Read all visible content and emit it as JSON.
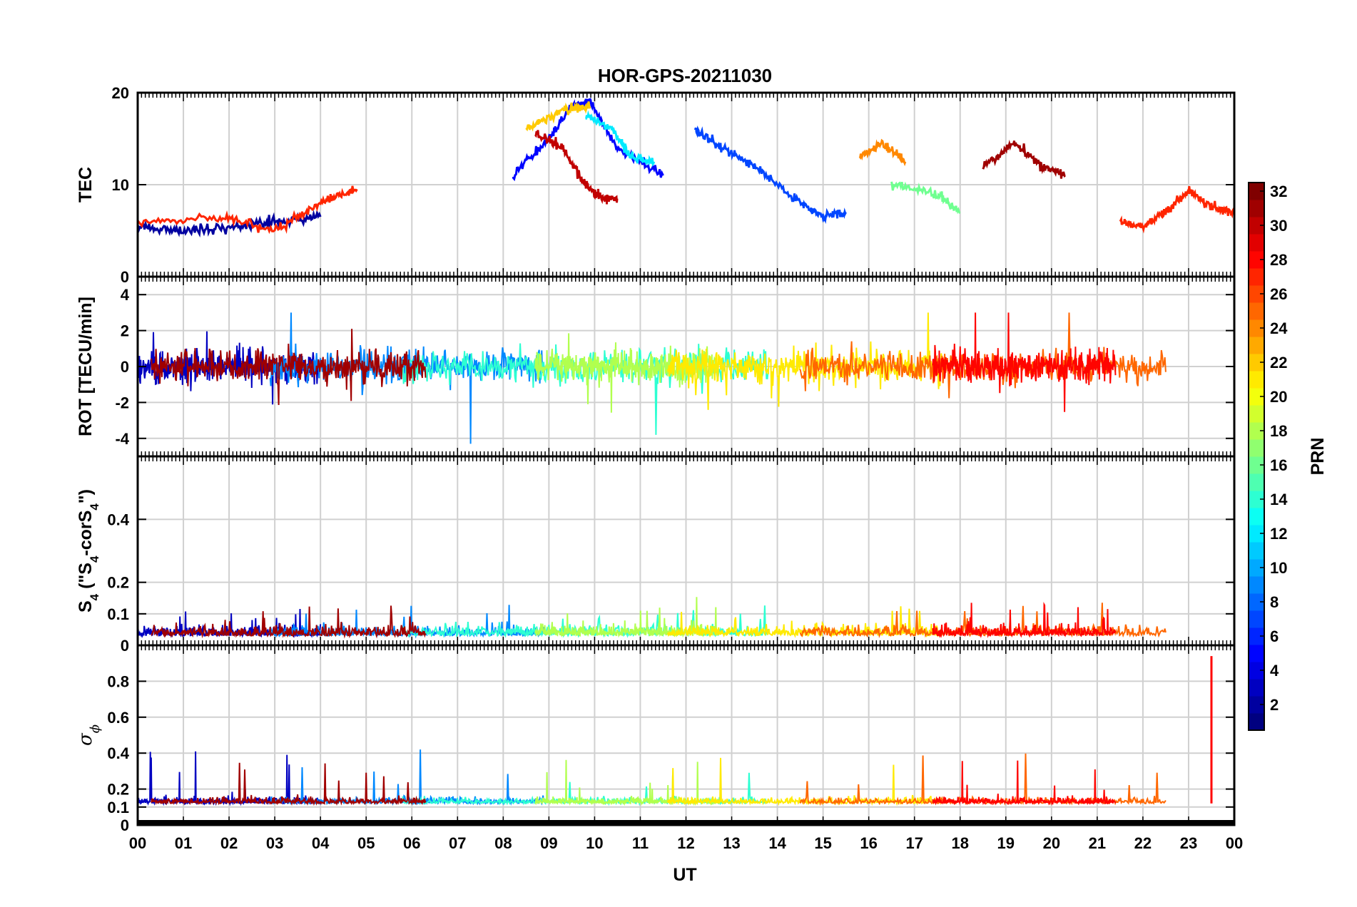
{
  "chart_data": {
    "type": "line",
    "title": "HOR-GPS-20211030",
    "xlabel": "UT",
    "x_tick_labels": [
      "00",
      "01",
      "02",
      "03",
      "04",
      "05",
      "06",
      "07",
      "08",
      "09",
      "10",
      "11",
      "12",
      "13",
      "14",
      "15",
      "16",
      "17",
      "18",
      "19",
      "20",
      "21",
      "22",
      "23",
      "00"
    ],
    "xlim": [
      0,
      24
    ],
    "colorbar": {
      "label": "PRN",
      "colormap": "jet",
      "range": [
        1,
        32
      ],
      "tick_values": [
        2,
        4,
        6,
        8,
        10,
        12,
        14,
        16,
        18,
        20,
        22,
        24,
        26,
        28,
        30,
        32
      ],
      "tick_labels": [
        "2",
        "4",
        "6",
        "8",
        "10",
        "12",
        "14",
        "16",
        "18",
        "20",
        "22",
        "24",
        "26",
        "28",
        "30",
        "32"
      ]
    },
    "panels": [
      {
        "id": "tec",
        "ylabel": "TEC",
        "ylim": [
          0,
          20
        ],
        "y_tick_values": [
          0,
          10,
          20
        ],
        "y_tick_labels": [
          "0",
          "10",
          "20"
        ],
        "series": [
          {
            "prn": 2,
            "x": [
              0.0,
              1.0,
              2.0,
              3.0,
              4.0
            ],
            "y": [
              5.5,
              5.0,
              5.3,
              6.0,
              6.5
            ]
          },
          {
            "prn": 27,
            "x": [
              0.0,
              1.8,
              3.0,
              4.0,
              4.8
            ],
            "y": [
              5.8,
              6.5,
              5.0,
              8.0,
              9.5
            ]
          },
          {
            "prn": 5,
            "x": [
              8.2,
              9.0,
              9.5,
              9.9,
              10.5,
              11.5
            ],
            "y": [
              11.0,
              15.0,
              18.5,
              19.0,
              14.0,
              11.0
            ]
          },
          {
            "prn": 22,
            "x": [
              8.5,
              9.3,
              9.9
            ],
            "y": [
              16.0,
              18.0,
              18.5
            ]
          },
          {
            "prn": 30,
            "x": [
              8.7,
              9.3,
              9.8,
              10.2,
              10.5
            ],
            "y": [
              15.5,
              14.0,
              10.0,
              8.5,
              8.5
            ]
          },
          {
            "prn": 12,
            "x": [
              9.8,
              10.4,
              10.8,
              11.3
            ],
            "y": [
              17.5,
              16.0,
              13.0,
              12.5
            ]
          },
          {
            "prn": 7,
            "x": [
              12.2,
              12.8,
              13.5,
              14.5,
              15.0,
              15.5
            ],
            "y": [
              16.0,
              14.0,
              12.0,
              8.0,
              6.5,
              7.0
            ]
          },
          {
            "prn": 24,
            "x": [
              15.8,
              16.3,
              16.8
            ],
            "y": [
              13.0,
              14.5,
              12.5
            ]
          },
          {
            "prn": 31,
            "x": [
              18.5,
              19.2,
              19.8,
              20.3
            ],
            "y": [
              12.0,
              14.5,
              12.0,
              11.0
            ]
          },
          {
            "prn": 16,
            "x": [
              16.5,
              17.5,
              18.0
            ],
            "y": [
              10.0,
              9.0,
              7.0
            ]
          },
          {
            "prn": 27,
            "x": [
              21.5,
              22.0,
              22.5,
              23.0,
              23.5,
              24.0
            ],
            "y": [
              6.0,
              5.5,
              7.0,
              9.5,
              7.5,
              7.0
            ]
          }
        ]
      },
      {
        "id": "rot",
        "ylabel": "ROT [TECU/min]",
        "ylim": [
          -5,
          5
        ],
        "y_tick_values": [
          -4,
          -2,
          0,
          2,
          4
        ],
        "y_tick_labels": [
          "-4",
          "-2",
          "0",
          "2",
          "4"
        ],
        "observed_extremes": {
          "max": 3.0,
          "min": -4.3
        }
      },
      {
        "id": "s4",
        "ylabel": "S",
        "ylabel_subscript": "4",
        "ylabel_suffix": " (\"S",
        "ylabel_suffix_subscript": "4",
        "ylabel_suffix2": "-corS",
        "ylabel_suffix2_subscript": "4",
        "ylabel_end": "\")",
        "ylim": [
          0,
          0.6
        ],
        "y_tick_values": [
          0,
          0.1,
          0.2,
          0.4
        ],
        "y_tick_labels": [
          "0",
          "0.1",
          "0.2",
          "0.4"
        ],
        "observed_extremes": {
          "max": 0.17
        }
      },
      {
        "id": "sigma",
        "ylabel": "σ",
        "ylabel_subscript": "ϕ",
        "ylim": [
          0,
          1
        ],
        "y_tick_values": [
          0,
          0.1,
          0.2,
          0.4,
          0.6,
          0.8
        ],
        "y_tick_labels": [
          "0",
          "0.1",
          "0.2",
          "0.4",
          "0.6",
          "0.8"
        ],
        "observed_extremes": {
          "max": 0.94,
          "baseline": 0.12
        }
      }
    ]
  }
}
